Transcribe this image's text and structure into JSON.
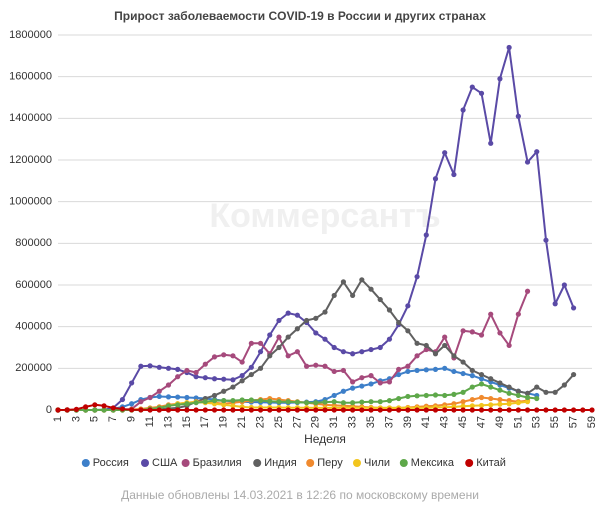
{
  "chart_data": {
    "type": "line",
    "title": "Прирост заболеваемости COVID-19 в России и других странах",
    "watermark": "Коммерсантъ",
    "x_label": "Неделя",
    "footer": "Данные обновлены 14.03.2021 в 12:26 по московскому времени",
    "categories": [
      "1",
      null,
      "3",
      null,
      "5",
      null,
      "7",
      null,
      "9",
      null,
      "11",
      null,
      "13",
      null,
      "15",
      null,
      "17",
      null,
      "19",
      null,
      "21",
      null,
      "23",
      null,
      "25",
      null,
      "27",
      null,
      "29",
      null,
      "31",
      null,
      "33",
      null,
      "35",
      null,
      "37",
      null,
      "39",
      null,
      "41",
      null,
      "43",
      null,
      "45",
      null,
      "47",
      null,
      "49",
      null,
      "51",
      null,
      "53",
      null,
      "55",
      null,
      "57",
      null,
      "59"
    ],
    "ylim": [
      0,
      1800000
    ],
    "yticks": [
      0,
      200000,
      400000,
      600000,
      800000,
      1000000,
      1200000,
      1400000,
      1600000,
      1800000
    ],
    "grid": true,
    "legend": "bottom",
    "series": [
      {
        "name": "Россия",
        "color": "#3d7fc9",
        "values": [
          0,
          0,
          0,
          0,
          0,
          1000,
          5000,
          15000,
          30000,
          50000,
          60000,
          65000,
          63000,
          62000,
          60000,
          58000,
          55000,
          50000,
          45000,
          42000,
          40000,
          38000,
          37000,
          36000,
          35000,
          35000,
          36000,
          38000,
          40000,
          50000,
          70000,
          90000,
          105000,
          115000,
          125000,
          140000,
          150000,
          170000,
          185000,
          190000,
          193000,
          195000,
          200000,
          185000,
          175000,
          165000,
          150000,
          135000,
          120000,
          105000,
          90000,
          80000,
          70000,
          null,
          null,
          null,
          null,
          null,
          null
        ]
      },
      {
        "name": "США",
        "color": "#5a4aa6",
        "values": [
          0,
          0,
          0,
          0,
          0,
          1000,
          10000,
          50000,
          130000,
          210000,
          212000,
          205000,
          200000,
          195000,
          180000,
          160000,
          155000,
          150000,
          148000,
          145000,
          165000,
          205000,
          280000,
          360000,
          430000,
          465000,
          455000,
          420000,
          370000,
          340000,
          300000,
          280000,
          270000,
          280000,
          290000,
          300000,
          340000,
          410000,
          500000,
          640000,
          840000,
          1110000,
          1235000,
          1130000,
          1440000,
          1550000,
          1520000,
          1280000,
          1590000,
          1740000,
          1410000,
          1190000,
          1240000,
          815000,
          510000,
          600000,
          490000,
          null,
          null
        ]
      },
      {
        "name": "Бразилия",
        "color": "#a64a7c",
        "values": [
          0,
          0,
          0,
          0,
          0,
          0,
          0,
          1000,
          5000,
          40000,
          60000,
          90000,
          120000,
          160000,
          190000,
          180000,
          220000,
          255000,
          265000,
          260000,
          230000,
          320000,
          320000,
          270000,
          350000,
          260000,
          280000,
          210000,
          215000,
          210000,
          185000,
          190000,
          135000,
          155000,
          165000,
          130000,
          135000,
          195000,
          210000,
          260000,
          290000,
          280000,
          350000,
          250000,
          380000,
          375000,
          360000,
          460000,
          370000,
          310000,
          460000,
          570000,
          null,
          null,
          null,
          null,
          null,
          null,
          null
        ]
      },
      {
        "name": "Индия",
        "color": "#606060",
        "values": [
          0,
          0,
          0,
          0,
          0,
          0,
          0,
          0,
          1000,
          2000,
          3000,
          5000,
          7000,
          10000,
          20000,
          40000,
          55000,
          70000,
          90000,
          110000,
          140000,
          170000,
          200000,
          260000,
          300000,
          350000,
          390000,
          430000,
          440000,
          470000,
          550000,
          615000,
          550000,
          625000,
          580000,
          530000,
          480000,
          420000,
          380000,
          320000,
          310000,
          270000,
          310000,
          260000,
          230000,
          190000,
          170000,
          150000,
          130000,
          110000,
          90000,
          80000,
          110000,
          85000,
          85000,
          120000,
          170000,
          null,
          null
        ]
      },
      {
        "name": "Перу",
        "color": "#f08a2e",
        "values": [
          0,
          0,
          0,
          0,
          0,
          0,
          0,
          0,
          2000,
          5000,
          10000,
          15000,
          25000,
          30000,
          35000,
          40000,
          40000,
          35000,
          30000,
          35000,
          40000,
          45000,
          50000,
          55000,
          50000,
          45000,
          40000,
          35000,
          30000,
          25000,
          22000,
          20000,
          18000,
          15000,
          12000,
          10000,
          10000,
          10000,
          12000,
          15000,
          18000,
          20000,
          25000,
          30000,
          40000,
          50000,
          60000,
          55000,
          50000,
          45000,
          40000,
          45000,
          null,
          null,
          null,
          null,
          null,
          null,
          null
        ]
      },
      {
        "name": "Чили",
        "color": "#f2c51e",
        "values": [
          0,
          0,
          0,
          0,
          0,
          0,
          0,
          0,
          0,
          2000,
          5000,
          10000,
          20000,
          30000,
          35000,
          38000,
          35000,
          30000,
          25000,
          20000,
          15000,
          12000,
          12000,
          12000,
          12000,
          11000,
          11000,
          11000,
          10000,
          10000,
          10000,
          10000,
          10000,
          10000,
          10000,
          10000,
          10000,
          10000,
          10000,
          10000,
          10000,
          12000,
          13000,
          15000,
          18000,
          20000,
          22000,
          25000,
          28000,
          30000,
          35000,
          40000,
          null,
          null,
          null,
          null,
          null,
          null,
          null
        ]
      },
      {
        "name": "Мексика",
        "color": "#5ea84a",
        "values": [
          0,
          0,
          0,
          0,
          0,
          0,
          0,
          0,
          0,
          0,
          5000,
          10000,
          20000,
          25000,
          30000,
          35000,
          40000,
          45000,
          45000,
          45000,
          48000,
          48000,
          45000,
          42000,
          40000,
          40000,
          38000,
          35000,
          35000,
          38000,
          40000,
          35000,
          35000,
          38000,
          40000,
          40000,
          45000,
          55000,
          65000,
          68000,
          70000,
          72000,
          70000,
          75000,
          85000,
          110000,
          125000,
          110000,
          95000,
          80000,
          70000,
          60000,
          55000,
          null,
          null,
          null,
          null,
          null,
          null
        ]
      },
      {
        "name": "Китай",
        "color": "#c00000",
        "values": [
          0,
          500,
          3000,
          15000,
          25000,
          20000,
          10000,
          5000,
          1000,
          500,
          0,
          0,
          0,
          0,
          0,
          0,
          0,
          0,
          0,
          0,
          0,
          0,
          0,
          0,
          0,
          0,
          0,
          0,
          0,
          0,
          0,
          0,
          0,
          0,
          0,
          0,
          0,
          0,
          0,
          0,
          0,
          0,
          0,
          0,
          0,
          0,
          0,
          0,
          0,
          0,
          0,
          0,
          0,
          0,
          0,
          0,
          0,
          0,
          0
        ]
      }
    ]
  }
}
